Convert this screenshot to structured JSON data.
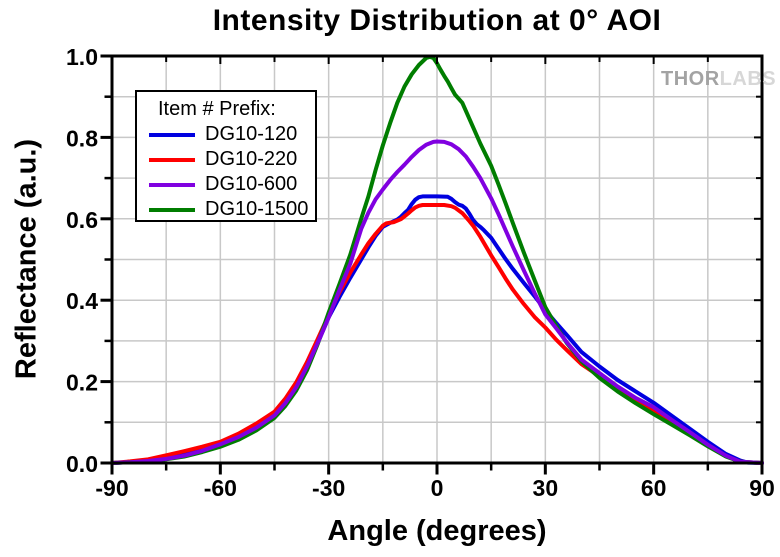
{
  "chart_data": {
    "type": "line",
    "title": "Intensity Distribution at 0° AOI",
    "xlabel": "Angle (degrees)",
    "ylabel": "Reflectance (a.u.)",
    "xlim": [
      -90,
      90
    ],
    "ylim": [
      0,
      1
    ],
    "x_major_ticks": [
      -90,
      -60,
      -30,
      0,
      30,
      60,
      90
    ],
    "x_tick_labels": [
      "-90",
      "-60",
      "-30",
      "0",
      "30",
      "60",
      "90"
    ],
    "x_minor_ticks": [
      -75,
      -45,
      -15,
      15,
      45,
      75
    ],
    "y_major_ticks": [
      0,
      0.2,
      0.4,
      0.6,
      0.8,
      1.0
    ],
    "y_tick_labels": [
      "0.0",
      "0.2",
      "0.4",
      "0.6",
      "0.8",
      "1.0"
    ],
    "y_minor_ticks": [
      0.1,
      0.3,
      0.5,
      0.7,
      0.9
    ],
    "grid": "on",
    "x_grid": [
      -75,
      -60,
      -45,
      -30,
      -15,
      0,
      15,
      30,
      45,
      60,
      75
    ],
    "y_grid": [
      0.1,
      0.2,
      0.3,
      0.4,
      0.5,
      0.6,
      0.7,
      0.8,
      0.9
    ],
    "grid_color": "#c8c8c8",
    "frame_color": "#000000",
    "legend_title": "Item # Prefix:",
    "legend_position": "upper-left-inside",
    "draw_order": [
      "DG10-120",
      "DG10-220",
      "DG10-1500",
      "DG10-600"
    ],
    "series": [
      {
        "name": "DG10-120",
        "color": "#0000e0",
        "points": [
          [
            -90,
            0.0
          ],
          [
            -85,
            0.002
          ],
          [
            -80,
            0.005
          ],
          [
            -75,
            0.011
          ],
          [
            -70,
            0.02
          ],
          [
            -65,
            0.032
          ],
          [
            -60,
            0.047
          ],
          [
            -55,
            0.066
          ],
          [
            -50,
            0.089
          ],
          [
            -45,
            0.118
          ],
          [
            -42,
            0.148
          ],
          [
            -39,
            0.185
          ],
          [
            -36,
            0.235
          ],
          [
            -33,
            0.295
          ],
          [
            -30,
            0.358
          ],
          [
            -27,
            0.408
          ],
          [
            -24,
            0.455
          ],
          [
            -21,
            0.5
          ],
          [
            -19,
            0.53
          ],
          [
            -17,
            0.558
          ],
          [
            -15,
            0.58
          ],
          [
            -13,
            0.59
          ],
          [
            -11,
            0.598
          ],
          [
            -10,
            0.605
          ],
          [
            -9,
            0.614
          ],
          [
            -8,
            0.622
          ],
          [
            -7,
            0.636
          ],
          [
            -6,
            0.647
          ],
          [
            -5,
            0.653
          ],
          [
            -4,
            0.655
          ],
          [
            0,
            0.655
          ],
          [
            3,
            0.654
          ],
          [
            4,
            0.649
          ],
          [
            5,
            0.641
          ],
          [
            6,
            0.635
          ],
          [
            7,
            0.632
          ],
          [
            8,
            0.625
          ],
          [
            9,
            0.612
          ],
          [
            10,
            0.597
          ],
          [
            11,
            0.587
          ],
          [
            12,
            0.58
          ],
          [
            13,
            0.572
          ],
          [
            15,
            0.553
          ],
          [
            17,
            0.527
          ],
          [
            19,
            0.501
          ],
          [
            21,
            0.477
          ],
          [
            24,
            0.443
          ],
          [
            27,
            0.41
          ],
          [
            30,
            0.376
          ],
          [
            33,
            0.344
          ],
          [
            36,
            0.314
          ],
          [
            40,
            0.273
          ],
          [
            45,
            0.237
          ],
          [
            50,
            0.204
          ],
          [
            55,
            0.176
          ],
          [
            60,
            0.148
          ],
          [
            65,
            0.116
          ],
          [
            70,
            0.084
          ],
          [
            75,
            0.052
          ],
          [
            80,
            0.022
          ],
          [
            84,
            0.006
          ],
          [
            86,
            0.001
          ],
          [
            90,
            0.0
          ]
        ]
      },
      {
        "name": "DG10-220",
        "color": "#ff0000",
        "points": [
          [
            -90,
            0.0
          ],
          [
            -85,
            0.004
          ],
          [
            -80,
            0.009
          ],
          [
            -75,
            0.019
          ],
          [
            -70,
            0.029
          ],
          [
            -65,
            0.04
          ],
          [
            -60,
            0.052
          ],
          [
            -55,
            0.072
          ],
          [
            -50,
            0.097
          ],
          [
            -45,
            0.126
          ],
          [
            -42,
            0.158
          ],
          [
            -39,
            0.198
          ],
          [
            -36,
            0.248
          ],
          [
            -33,
            0.305
          ],
          [
            -30,
            0.364
          ],
          [
            -27,
            0.42
          ],
          [
            -24,
            0.468
          ],
          [
            -21,
            0.512
          ],
          [
            -19,
            0.54
          ],
          [
            -17,
            0.563
          ],
          [
            -15,
            0.583
          ],
          [
            -14,
            0.589
          ],
          [
            -12,
            0.592
          ],
          [
            -10,
            0.599
          ],
          [
            -9,
            0.606
          ],
          [
            -8,
            0.613
          ],
          [
            -7,
            0.621
          ],
          [
            -6,
            0.628
          ],
          [
            -5,
            0.632
          ],
          [
            -4,
            0.634
          ],
          [
            0,
            0.634
          ],
          [
            2,
            0.634
          ],
          [
            4,
            0.631
          ],
          [
            5,
            0.627
          ],
          [
            7,
            0.614
          ],
          [
            9,
            0.594
          ],
          [
            10,
            0.583
          ],
          [
            12,
            0.556
          ],
          [
            15,
            0.51
          ],
          [
            17,
            0.482
          ],
          [
            19,
            0.453
          ],
          [
            21,
            0.426
          ],
          [
            24,
            0.391
          ],
          [
            27,
            0.359
          ],
          [
            30,
            0.333
          ],
          [
            33,
            0.303
          ],
          [
            36,
            0.277
          ],
          [
            40,
            0.243
          ],
          [
            45,
            0.213
          ],
          [
            50,
            0.184
          ],
          [
            55,
            0.155
          ],
          [
            60,
            0.128
          ],
          [
            65,
            0.1
          ],
          [
            70,
            0.071
          ],
          [
            75,
            0.044
          ],
          [
            80,
            0.017
          ],
          [
            84,
            0.003
          ],
          [
            90,
            0.0
          ]
        ]
      },
      {
        "name": "DG10-600",
        "color": "#8000e0",
        "points": [
          [
            -90,
            0.0
          ],
          [
            -85,
            0.002
          ],
          [
            -80,
            0.005
          ],
          [
            -75,
            0.01
          ],
          [
            -70,
            0.018
          ],
          [
            -65,
            0.03
          ],
          [
            -60,
            0.046
          ],
          [
            -55,
            0.064
          ],
          [
            -50,
            0.087
          ],
          [
            -45,
            0.117
          ],
          [
            -42,
            0.147
          ],
          [
            -39,
            0.186
          ],
          [
            -36,
            0.237
          ],
          [
            -33,
            0.296
          ],
          [
            -30,
            0.358
          ],
          [
            -27,
            0.425
          ],
          [
            -24,
            0.49
          ],
          [
            -21,
            0.575
          ],
          [
            -19,
            0.615
          ],
          [
            -17,
            0.648
          ],
          [
            -15,
            0.672
          ],
          [
            -13,
            0.695
          ],
          [
            -11,
            0.715
          ],
          [
            -9,
            0.733
          ],
          [
            -7,
            0.752
          ],
          [
            -5,
            0.769
          ],
          [
            -3,
            0.782
          ],
          [
            -1,
            0.789
          ],
          [
            0,
            0.79
          ],
          [
            2,
            0.789
          ],
          [
            4,
            0.783
          ],
          [
            6,
            0.771
          ],
          [
            8,
            0.753
          ],
          [
            10,
            0.728
          ],
          [
            12,
            0.7
          ],
          [
            15,
            0.65
          ],
          [
            17,
            0.612
          ],
          [
            19,
            0.572
          ],
          [
            21,
            0.532
          ],
          [
            24,
            0.474
          ],
          [
            27,
            0.418
          ],
          [
            30,
            0.365
          ],
          [
            33,
            0.331
          ],
          [
            36,
            0.296
          ],
          [
            40,
            0.254
          ],
          [
            45,
            0.221
          ],
          [
            50,
            0.188
          ],
          [
            55,
            0.16
          ],
          [
            60,
            0.137
          ],
          [
            65,
            0.106
          ],
          [
            70,
            0.076
          ],
          [
            75,
            0.045
          ],
          [
            80,
            0.018
          ],
          [
            84,
            0.003
          ],
          [
            90,
            0.0
          ]
        ]
      },
      {
        "name": "DG10-1500",
        "color": "#007d00",
        "points": [
          [
            -90,
            0.0
          ],
          [
            -85,
            0.002
          ],
          [
            -80,
            0.004
          ],
          [
            -75,
            0.009
          ],
          [
            -70,
            0.016
          ],
          [
            -65,
            0.027
          ],
          [
            -60,
            0.04
          ],
          [
            -55,
            0.057
          ],
          [
            -50,
            0.08
          ],
          [
            -45,
            0.111
          ],
          [
            -42,
            0.14
          ],
          [
            -39,
            0.178
          ],
          [
            -36,
            0.228
          ],
          [
            -33,
            0.293
          ],
          [
            -30,
            0.37
          ],
          [
            -27,
            0.44
          ],
          [
            -24,
            0.512
          ],
          [
            -21,
            0.6
          ],
          [
            -19,
            0.655
          ],
          [
            -17,
            0.72
          ],
          [
            -15,
            0.78
          ],
          [
            -13,
            0.835
          ],
          [
            -11,
            0.885
          ],
          [
            -9,
            0.925
          ],
          [
            -7,
            0.955
          ],
          [
            -5,
            0.978
          ],
          [
            -3,
            0.995
          ],
          [
            -2,
            0.998
          ],
          [
            -1,
            0.995
          ],
          [
            0,
            0.982
          ],
          [
            1,
            0.966
          ],
          [
            2,
            0.951
          ],
          [
            3,
            0.937
          ],
          [
            4,
            0.921
          ],
          [
            5,
            0.905
          ],
          [
            7,
            0.885
          ],
          [
            9,
            0.845
          ],
          [
            10,
            0.825
          ],
          [
            12,
            0.785
          ],
          [
            15,
            0.73
          ],
          [
            17,
            0.685
          ],
          [
            19,
            0.638
          ],
          [
            21,
            0.59
          ],
          [
            24,
            0.518
          ],
          [
            27,
            0.45
          ],
          [
            30,
            0.383
          ],
          [
            32,
            0.352
          ],
          [
            34,
            0.322
          ],
          [
            36,
            0.294
          ],
          [
            38,
            0.272
          ],
          [
            40,
            0.25
          ],
          [
            45,
            0.209
          ],
          [
            50,
            0.176
          ],
          [
            55,
            0.147
          ],
          [
            60,
            0.12
          ],
          [
            65,
            0.094
          ],
          [
            70,
            0.068
          ],
          [
            75,
            0.041
          ],
          [
            80,
            0.016
          ],
          [
            84,
            0.003
          ],
          [
            90,
            0.0
          ]
        ]
      }
    ]
  },
  "watermark": {
    "thor": "THOR",
    "labs": "LABS"
  }
}
